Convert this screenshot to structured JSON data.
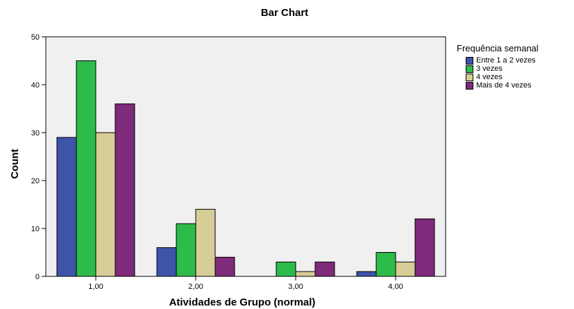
{
  "chart_data": {
    "type": "bar",
    "title": "Bar Chart",
    "xlabel": "Atividades de Grupo (normal)",
    "ylabel": "Count",
    "categories": [
      "1,00",
      "2,00",
      "3,00",
      "4,00"
    ],
    "ylim": [
      0,
      50
    ],
    "yticks": [
      "0",
      "10",
      "20",
      "30",
      "40",
      "50"
    ],
    "grid": false,
    "legend_position": "right",
    "legend_title": "Frequência semanal",
    "series": [
      {
        "name": "Entre 1 a 2 vezes",
        "color": "#3e54a8",
        "values": [
          29,
          6,
          0,
          1
        ]
      },
      {
        "name": "3 vezes",
        "color": "#2dbb4a",
        "values": [
          45,
          11,
          3,
          5
        ]
      },
      {
        "name": "4 vezes",
        "color": "#d6cd97",
        "values": [
          30,
          14,
          1,
          3
        ]
      },
      {
        "name": "Mais de 4 vezes",
        "color": "#7f2a7a",
        "values": [
          36,
          4,
          3,
          12
        ]
      }
    ],
    "plot_background": "#f0f0f0"
  }
}
